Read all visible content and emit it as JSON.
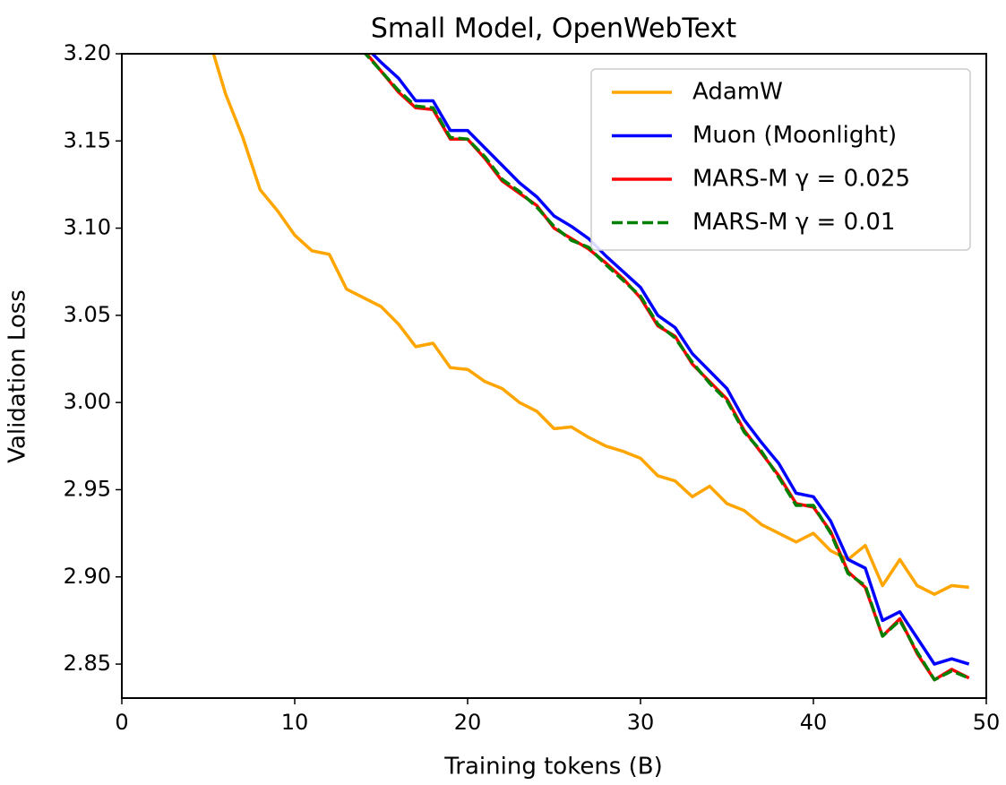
{
  "chart_data": {
    "type": "line",
    "title": "Small Model, OpenWebText",
    "x_label": "Training tokens (B)",
    "y_label": "Validation Loss",
    "xlim": [
      0,
      50
    ],
    "xticks": [
      0,
      10,
      20,
      30,
      40,
      50
    ],
    "ylim": [
      2.8305,
      3.2
    ],
    "yticks": [
      2.85,
      {
        "value": 2.9,
        "label": "2.90"
      },
      2.95,
      {
        "value": 3.0,
        "label": "3.00"
      },
      3.05,
      {
        "value": 3.1,
        "label": "3.10"
      },
      3.15,
      {
        "value": 3.2,
        "label": "3.20"
      }
    ],
    "legend": "upper right",
    "series": [
      {
        "name": "AdamW",
        "color": "#ffa500",
        "linestyle": "solid",
        "x": [
          5,
          6,
          7,
          8,
          9,
          10,
          11,
          12,
          13,
          14,
          15,
          16,
          17,
          18,
          19,
          20,
          21,
          22,
          23,
          24,
          25,
          26,
          27,
          28,
          29,
          30,
          31,
          32,
          33,
          34,
          35,
          36,
          37,
          38,
          39,
          40,
          41,
          42,
          43,
          44,
          45,
          46,
          47,
          48,
          49
        ],
        "values": [
          3.21,
          3.177,
          3.152,
          3.122,
          3.11,
          3.096,
          3.087,
          3.085,
          3.065,
          3.06,
          3.055,
          3.045,
          3.032,
          3.034,
          3.02,
          3.019,
          3.012,
          3.008,
          3.0,
          2.995,
          2.985,
          2.986,
          2.98,
          2.975,
          2.972,
          2.968,
          2.958,
          2.955,
          2.946,
          2.952,
          2.942,
          2.938,
          2.93,
          2.925,
          2.92,
          2.925,
          2.915,
          2.91,
          2.918,
          2.895,
          2.91,
          2.895,
          2.89,
          2.895,
          2.894
        ]
      },
      {
        "name": "Muon (Moonlight)",
        "color": "#0000ff",
        "linestyle": "solid",
        "x": [
          13,
          14,
          15,
          16,
          17,
          18,
          19,
          20,
          21,
          22,
          23,
          24,
          25,
          26,
          27,
          28,
          29,
          30,
          31,
          32,
          33,
          34,
          35,
          36,
          37,
          38,
          39,
          40,
          41,
          42,
          43,
          44,
          45,
          46,
          47,
          48,
          49
        ],
        "values": [
          3.205,
          3.205,
          3.195,
          3.186,
          3.173,
          3.173,
          3.156,
          3.156,
          3.146,
          3.136,
          3.126,
          3.118,
          3.107,
          3.101,
          3.094,
          3.084,
          3.075,
          3.066,
          3.05,
          3.043,
          3.028,
          3.018,
          3.008,
          2.99,
          2.977,
          2.965,
          2.948,
          2.946,
          2.932,
          2.91,
          2.905,
          2.875,
          2.88,
          2.865,
          2.85,
          2.853,
          2.85
        ]
      },
      {
        "name": "MARS-M γ = 0.025",
        "color": "#ff0000",
        "linestyle": "solid",
        "x": [
          13,
          14,
          15,
          16,
          17,
          18,
          19,
          20,
          21,
          22,
          23,
          24,
          25,
          26,
          27,
          28,
          29,
          30,
          31,
          32,
          33,
          34,
          35,
          36,
          37,
          38,
          39,
          40,
          41,
          42,
          43,
          44,
          45,
          46,
          47,
          48,
          49
        ],
        "values": [
          3.203,
          3.202,
          3.19,
          3.178,
          3.169,
          3.168,
          3.151,
          3.151,
          3.14,
          3.127,
          3.12,
          3.113,
          3.1,
          3.094,
          3.088,
          3.08,
          3.071,
          3.06,
          3.044,
          3.038,
          3.022,
          3.012,
          3.002,
          2.984,
          2.971,
          2.958,
          2.942,
          2.94,
          2.926,
          2.903,
          2.894,
          2.866,
          2.876,
          2.856,
          2.841,
          2.847,
          2.842
        ]
      },
      {
        "name": "MARS-M γ = 0.01",
        "color": "#008000",
        "linestyle": "dashed",
        "x": [
          13,
          14,
          15,
          16,
          17,
          18,
          19,
          20,
          21,
          22,
          23,
          24,
          25,
          26,
          27,
          28,
          29,
          30,
          31,
          32,
          33,
          34,
          35,
          36,
          37,
          38,
          39,
          40,
          41,
          42,
          43,
          44,
          45,
          46,
          47,
          48,
          49
        ],
        "values": [
          3.203,
          3.201,
          3.19,
          3.179,
          3.17,
          3.169,
          3.152,
          3.151,
          3.141,
          3.128,
          3.121,
          3.112,
          3.101,
          3.093,
          3.089,
          3.079,
          3.07,
          3.061,
          3.045,
          3.037,
          3.023,
          3.011,
          3.001,
          2.983,
          2.972,
          2.957,
          2.941,
          2.941,
          2.925,
          2.902,
          2.895,
          2.866,
          2.875,
          2.857,
          2.841,
          2.846,
          2.842
        ]
      }
    ]
  }
}
